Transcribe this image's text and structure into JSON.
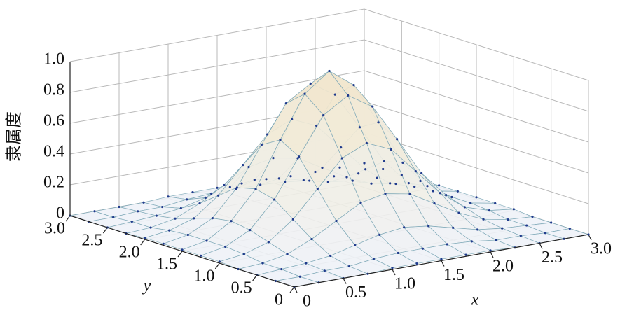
{
  "chart_data": {
    "type": "surface",
    "zlabel": "隶属度",
    "xlabel": "x",
    "ylabel": "y",
    "x": [
      0,
      0.25,
      0.5,
      0.75,
      1,
      1.25,
      1.5,
      1.75,
      2,
      2.25,
      2.5,
      2.75,
      3
    ],
    "y": [
      0,
      0.25,
      0.5,
      0.75,
      1,
      1.25,
      1.5,
      1.75,
      2,
      2.25,
      2.5,
      2.75,
      3
    ],
    "z": [
      [
        0,
        0,
        0,
        0,
        0.01,
        0.01,
        0.01,
        0.01,
        0.01,
        0,
        0,
        0,
        0
      ],
      [
        0,
        0,
        0.01,
        0.01,
        0.03,
        0.04,
        0.04,
        0.04,
        0.03,
        0.01,
        0.01,
        0,
        0
      ],
      [
        0,
        0.01,
        0.02,
        0.04,
        0.08,
        0.12,
        0.14,
        0.12,
        0.08,
        0.04,
        0.02,
        0.01,
        0
      ],
      [
        0,
        0.01,
        0.04,
        0.11,
        0.2,
        0.29,
        0.32,
        0.29,
        0.2,
        0.11,
        0.04,
        0.01,
        0
      ],
      [
        0.01,
        0.03,
        0.08,
        0.2,
        0.37,
        0.54,
        0.61,
        0.54,
        0.37,
        0.2,
        0.08,
        0.03,
        0.01
      ],
      [
        0.01,
        0.04,
        0.12,
        0.29,
        0.54,
        0.78,
        0.88,
        0.78,
        0.54,
        0.29,
        0.12,
        0.04,
        0.01
      ],
      [
        0.01,
        0.04,
        0.14,
        0.32,
        0.61,
        0.88,
        1,
        0.88,
        0.61,
        0.32,
        0.14,
        0.04,
        0.01
      ],
      [
        0.01,
        0.04,
        0.12,
        0.29,
        0.54,
        0.78,
        0.88,
        0.78,
        0.54,
        0.29,
        0.12,
        0.04,
        0.01
      ],
      [
        0.01,
        0.03,
        0.08,
        0.2,
        0.37,
        0.54,
        0.61,
        0.54,
        0.37,
        0.2,
        0.08,
        0.03,
        0.01
      ],
      [
        0,
        0.01,
        0.04,
        0.11,
        0.2,
        0.29,
        0.32,
        0.29,
        0.2,
        0.11,
        0.04,
        0.01,
        0
      ],
      [
        0,
        0.01,
        0.02,
        0.04,
        0.08,
        0.12,
        0.14,
        0.12,
        0.08,
        0.04,
        0.02,
        0.01,
        0
      ],
      [
        0,
        0,
        0.01,
        0.01,
        0.03,
        0.04,
        0.04,
        0.04,
        0.03,
        0.01,
        0.01,
        0,
        0
      ],
      [
        0,
        0,
        0,
        0,
        0.01,
        0.01,
        0.01,
        0.01,
        0.01,
        0,
        0,
        0,
        0
      ]
    ],
    "xlim": [
      0,
      3
    ],
    "ylim": [
      0,
      3
    ],
    "zlim": [
      0,
      1
    ],
    "xticks": [
      0,
      0.5,
      {
        "value": 1,
        "label": "1.0"
      },
      1.5,
      {
        "value": 2,
        "label": "2.0"
      },
      2.5,
      {
        "value": 3,
        "label": "3.0"
      }
    ],
    "yticks": [
      0,
      0.5,
      {
        "value": 1,
        "label": "1.0"
      },
      1.5,
      {
        "value": 2,
        "label": "2.0"
      },
      2.5,
      {
        "value": 3,
        "label": "3.0"
      }
    ],
    "zticks": [
      0,
      0.2,
      0.4,
      0.6,
      0.8,
      {
        "value": 1,
        "label": "1.0"
      }
    ],
    "grid": true,
    "mesh_color": "#7fa9b8",
    "point_color": "#1f3a8c",
    "low_color": "#eef2f8",
    "high_color": "#f3e6c8"
  }
}
